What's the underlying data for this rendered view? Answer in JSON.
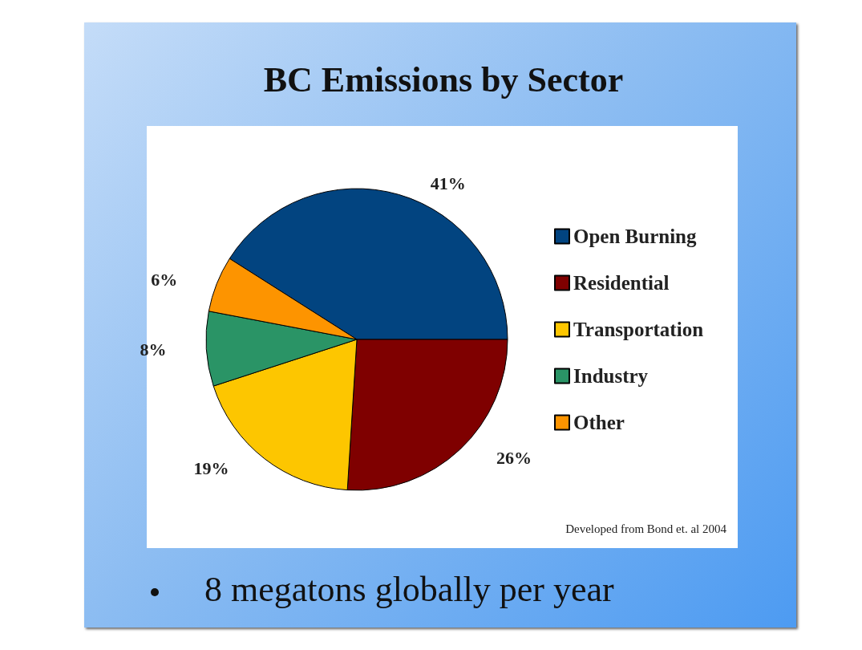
{
  "chart_data": {
    "type": "pie",
    "title": "BC Emissions by Sector",
    "categories": [
      "Open Burning",
      "Residential",
      "Transportation",
      "Industry",
      "Other"
    ],
    "values": [
      41,
      26,
      19,
      8,
      6
    ],
    "value_labels": [
      "41%",
      "26%",
      "19%",
      "8%",
      "6%"
    ],
    "colors": [
      "#024480",
      "#7f0000",
      "#fdc600",
      "#2a9466",
      "#fd9400"
    ],
    "legend": "right",
    "annotations": [
      "Developed from Bond et. al 2004",
      "8 megatons globally per year"
    ]
  }
}
